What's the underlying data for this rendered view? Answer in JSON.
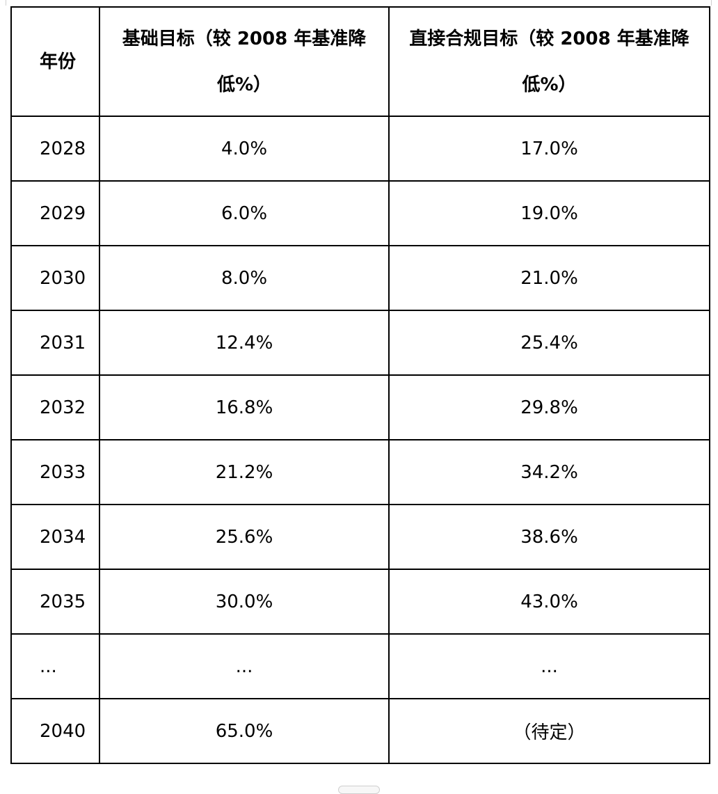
{
  "table": {
    "headers": {
      "year": "年份",
      "base": "基础目标（较 2008 年基准降低%）",
      "direct": "直接合规目标（较 2008 年基准降低%）"
    },
    "rows": [
      {
        "year": "2028",
        "base": "4.0%",
        "direct": "17.0%"
      },
      {
        "year": "2029",
        "base": "6.0%",
        "direct": "19.0%"
      },
      {
        "year": "2030",
        "base": "8.0%",
        "direct": "21.0%"
      },
      {
        "year": "2031",
        "base": "12.4%",
        "direct": "25.4%"
      },
      {
        "year": "2032",
        "base": "16.8%",
        "direct": "29.8%"
      },
      {
        "year": "2033",
        "base": "21.2%",
        "direct": "34.2%"
      },
      {
        "year": "2034",
        "base": "25.6%",
        "direct": "38.6%"
      },
      {
        "year": "2035",
        "base": "30.0%",
        "direct": "43.0%"
      },
      {
        "year": "...",
        "base": "...",
        "direct": "..."
      },
      {
        "year": "2040",
        "base": "65.0%",
        "direct": "（待定）"
      }
    ]
  }
}
